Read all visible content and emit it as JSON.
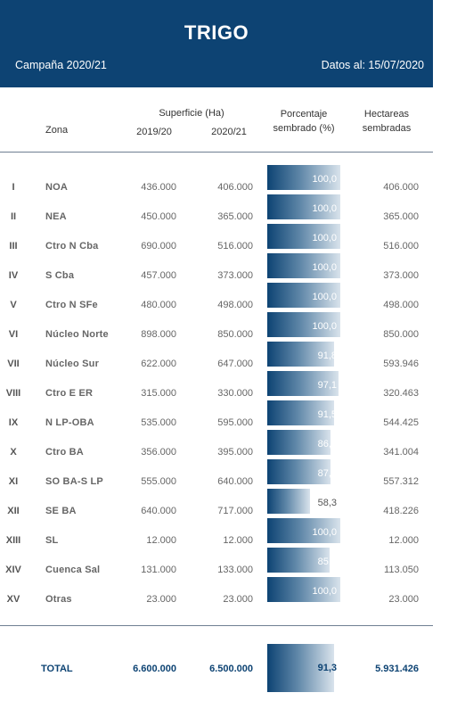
{
  "header": {
    "title": "TRIGO",
    "campaign": "Campaña 2020/21",
    "date": "Datos al: 15/07/2020"
  },
  "columns": {
    "zona": "Zona",
    "superficie": "Superficie (Ha)",
    "y2019": "2019/20",
    "y2020": "2020/21",
    "porcentaje_l1": "Porcentaje",
    "porcentaje_l2": "sembrado (%)",
    "hectareas_l1": "Hectareas",
    "hectareas_l2": "sembradas"
  },
  "rows": [
    {
      "num": "I",
      "zona": "NOA",
      "s2019": "436.000",
      "s2020": "406.000",
      "pct": "100,0",
      "pct_value": 100.0,
      "hect": "406.000"
    },
    {
      "num": "II",
      "zona": "NEA",
      "s2019": "450.000",
      "s2020": "365.000",
      "pct": "100,0",
      "pct_value": 100.0,
      "hect": "365.000"
    },
    {
      "num": "III",
      "zona": "Ctro N Cba",
      "s2019": "690.000",
      "s2020": "516.000",
      "pct": "100,0",
      "pct_value": 100.0,
      "hect": "516.000"
    },
    {
      "num": "IV",
      "zona": "S Cba",
      "s2019": "457.000",
      "s2020": "373.000",
      "pct": "100,0",
      "pct_value": 100.0,
      "hect": "373.000"
    },
    {
      "num": "V",
      "zona": "Ctro N SFe",
      "s2019": "480.000",
      "s2020": "498.000",
      "pct": "100,0",
      "pct_value": 100.0,
      "hect": "498.000"
    },
    {
      "num": "VI",
      "zona": "Núcleo Norte",
      "s2019": "898.000",
      "s2020": "850.000",
      "pct": "100,0",
      "pct_value": 100.0,
      "hect": "850.000"
    },
    {
      "num": "VII",
      "zona": "Núcleo Sur",
      "s2019": "622.000",
      "s2020": "647.000",
      "pct": "91,8",
      "pct_value": 91.8,
      "hect": "593.946"
    },
    {
      "num": "VIII",
      "zona": "Ctro E ER",
      "s2019": "315.000",
      "s2020": "330.000",
      "pct": "97,1",
      "pct_value": 97.1,
      "hect": "320.463"
    },
    {
      "num": "IX",
      "zona": "N LP-OBA",
      "s2019": "535.000",
      "s2020": "595.000",
      "pct": "91,5",
      "pct_value": 91.5,
      "hect": "544.425"
    },
    {
      "num": "X",
      "zona": "Ctro BA",
      "s2019": "356.000",
      "s2020": "395.000",
      "pct": "86,3",
      "pct_value": 86.3,
      "hect": "341.004"
    },
    {
      "num": "XI",
      "zona": "SO BA-S LP",
      "s2019": "555.000",
      "s2020": "640.000",
      "pct": "87,1",
      "pct_value": 87.1,
      "hect": "557.312"
    },
    {
      "num": "XII",
      "zona": "SE BA",
      "s2019": "640.000",
      "s2020": "717.000",
      "pct": "58,3",
      "pct_value": 58.3,
      "hect": "418.226"
    },
    {
      "num": "XIII",
      "zona": "SL",
      "s2019": "12.000",
      "s2020": "12.000",
      "pct": "100,0",
      "pct_value": 100.0,
      "hect": "12.000"
    },
    {
      "num": "XIV",
      "zona": "Cuenca Sal",
      "s2019": "131.000",
      "s2020": "133.000",
      "pct": "85,0",
      "pct_value": 85.0,
      "hect": "113.050"
    },
    {
      "num": "XV",
      "zona": "Otras",
      "s2019": "23.000",
      "s2020": "23.000",
      "pct": "100,0",
      "pct_value": 100.0,
      "hect": "23.000"
    }
  ],
  "total": {
    "label": "TOTAL",
    "s2019": "6.600.000",
    "s2020": "6.500.000",
    "pct": "91,3",
    "pct_value": 91.3,
    "hect": "5.931.426"
  },
  "colors": {
    "header_bg": "#0d4373",
    "bar_dark": "#0d4373",
    "bar_light": "#d9e3ec"
  }
}
